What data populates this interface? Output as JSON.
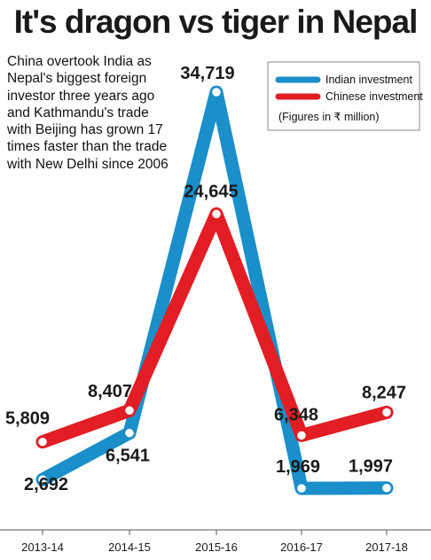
{
  "title": "It's dragon vs tiger in Nepal",
  "intro": "China overtook India as Nepal's biggest foreign investor three years ago and Kathmandu's trade with Beijing has grown 17 times faster than the trade with New Delhi since 2006",
  "chart_data": {
    "type": "line",
    "categories": [
      "2013-14",
      "2014-15",
      "2015-16",
      "2016-17",
      "2017-18"
    ],
    "series": [
      {
        "name": "Indian investment",
        "color": "#1a8fc9",
        "values": [
          2692,
          6541,
          34719,
          1969,
          1997
        ]
      },
      {
        "name": "Chinese investment",
        "color": "#e21d24",
        "values": [
          5809,
          8407,
          24645,
          6348,
          8247
        ]
      }
    ],
    "note": "(Figures in ₹ million)",
    "data_labels": {
      "Indian investment": [
        "2,692",
        "6,541",
        "34,719",
        "1,969",
        "1,997"
      ],
      "Chinese investment": [
        "5,809",
        "8,407",
        "24,645",
        "6,348",
        "8,247"
      ]
    },
    "ylim": [
      0,
      34719
    ],
    "legend_position": "top-right",
    "grid": false
  }
}
